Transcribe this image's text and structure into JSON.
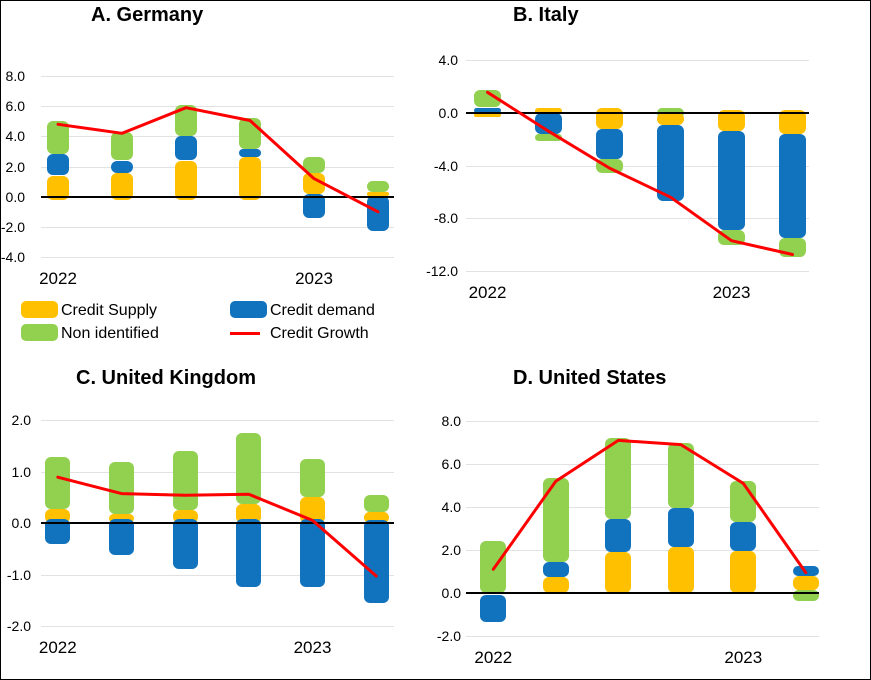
{
  "colors": {
    "supply": "#FFC000",
    "demand": "#1173BD",
    "non": "#92D050",
    "growth": "#FF0000",
    "gridline": "#E2E2E2",
    "zero_line": "#000000"
  },
  "legend": {
    "items": [
      {
        "key": "supply",
        "label": "Credit Supply"
      },
      {
        "key": "demand",
        "label": "Credit demand"
      },
      {
        "key": "non",
        "label": "Non identified"
      },
      {
        "key": "growth",
        "label": "Credit Growth"
      }
    ]
  },
  "chart_data": [
    {
      "id": "germany",
      "type": "bar",
      "title": "A. Germany",
      "ylim": [
        -4,
        8
      ],
      "grid": true,
      "yticks": [
        {
          "v": 8,
          "label": "8.0"
        },
        {
          "v": 6,
          "label": "6.0"
        },
        {
          "v": 4,
          "label": "4.0"
        },
        {
          "v": 2,
          "label": "2.0"
        },
        {
          "v": 0,
          "label": "0.0"
        },
        {
          "v": -2,
          "label": "-2.0"
        },
        {
          "v": -4,
          "label": "-4.0"
        }
      ],
      "x_labels": [
        {
          "bar_index": 0,
          "label": "2022"
        },
        {
          "bar_index": 4,
          "label": "2023"
        }
      ],
      "bars": [
        {
          "segments": [
            {
              "series": "supply",
              "from": -0.2,
              "to": 1.4
            },
            {
              "series": "demand",
              "from": 1.4,
              "to": 2.8
            },
            {
              "series": "non",
              "from": 2.8,
              "to": 5.0
            }
          ]
        },
        {
          "segments": [
            {
              "series": "supply",
              "from": -0.2,
              "to": 1.55
            },
            {
              "series": "demand",
              "from": 1.55,
              "to": 2.4
            },
            {
              "series": "non",
              "from": 2.4,
              "to": 4.3
            }
          ]
        },
        {
          "segments": [
            {
              "series": "supply",
              "from": -0.2,
              "to": 2.4
            },
            {
              "series": "demand",
              "from": 2.4,
              "to": 4.0
            },
            {
              "series": "non",
              "from": 4.0,
              "to": 6.1
            }
          ]
        },
        {
          "segments": [
            {
              "series": "supply",
              "from": -0.2,
              "to": 2.6
            },
            {
              "series": "demand",
              "from": 2.6,
              "to": 3.15
            },
            {
              "series": "non",
              "from": 3.15,
              "to": 5.2
            }
          ]
        },
        {
          "segments": [
            {
              "series": "demand",
              "from": -1.45,
              "to": 0.2
            },
            {
              "series": "supply",
              "from": 0.2,
              "to": 1.55
            },
            {
              "series": "non",
              "from": 1.55,
              "to": 2.6
            }
          ]
        },
        {
          "segments": [
            {
              "series": "demand",
              "from": -2.25,
              "to": 0.05
            },
            {
              "series": "supply",
              "from": 0.05,
              "to": 0.3
            },
            {
              "series": "non",
              "from": 0.3,
              "to": 1.05
            }
          ]
        }
      ],
      "credit_growth_line": [
        4.8,
        4.2,
        5.9,
        5.05,
        1.2,
        -1.0
      ]
    },
    {
      "id": "italy",
      "type": "bar",
      "title": "B. Italy",
      "ylim": [
        -12,
        4
      ],
      "grid": true,
      "yticks": [
        {
          "v": 4,
          "label": "4.0"
        },
        {
          "v": 0,
          "label": "0.0"
        },
        {
          "v": -4,
          "label": "-4.0"
        },
        {
          "v": -8,
          "label": "-8.0"
        },
        {
          "v": -12,
          "label": "-12.0"
        }
      ],
      "x_labels": [
        {
          "bar_index": 0,
          "label": "2022"
        },
        {
          "bar_index": 4,
          "label": "2023"
        }
      ],
      "bars": [
        {
          "segments": [
            {
              "series": "supply",
              "from": -0.3,
              "to": 0
            },
            {
              "series": "demand",
              "from": 0,
              "to": 0.4
            },
            {
              "series": "non",
              "from": 0.4,
              "to": 1.7
            }
          ]
        },
        {
          "segments": [
            {
              "series": "supply",
              "from": -0.1,
              "to": 0.4
            },
            {
              "series": "demand",
              "from": -1.6,
              "to": 0
            },
            {
              "series": "non",
              "from": -2.15,
              "to": -1.6
            }
          ]
        },
        {
          "segments": [
            {
              "series": "supply",
              "from": -1.25,
              "to": 0.33
            },
            {
              "series": "demand",
              "from": -3.5,
              "to": -1.25
            },
            {
              "series": "non",
              "from": -4.6,
              "to": -3.5
            }
          ]
        },
        {
          "segments": [
            {
              "series": "non",
              "from": -0.4,
              "to": 0.35
            },
            {
              "series": "supply",
              "from": -0.9,
              "to": 0
            },
            {
              "series": "demand",
              "from": -6.7,
              "to": -0.9
            }
          ]
        },
        {
          "segments": [
            {
              "series": "supply",
              "from": -1.4,
              "to": 0.2
            },
            {
              "series": "demand",
              "from": -8.9,
              "to": -1.4
            },
            {
              "series": "non",
              "from": -10.0,
              "to": -8.9
            }
          ]
        },
        {
          "segments": [
            {
              "series": "supply",
              "from": -1.6,
              "to": 0.25
            },
            {
              "series": "demand",
              "from": -9.5,
              "to": -1.6
            },
            {
              "series": "non",
              "from": -10.9,
              "to": -9.5
            }
          ]
        }
      ],
      "credit_growth_line": [
        1.55,
        -1.4,
        -4.2,
        -6.4,
        -9.7,
        -10.75
      ]
    },
    {
      "id": "united_kingdom",
      "type": "bar",
      "title": "C. United Kingdom",
      "ylim": [
        -2,
        2
      ],
      "grid": true,
      "yticks": [
        {
          "v": 2,
          "label": "2.0"
        },
        {
          "v": 1,
          "label": "1.0"
        },
        {
          "v": 0,
          "label": "0.0"
        },
        {
          "v": -1,
          "label": "-1.0"
        },
        {
          "v": -2,
          "label": "-2.0"
        }
      ],
      "x_labels": [
        {
          "bar_index": 0,
          "label": "2022"
        },
        {
          "bar_index": 4,
          "label": "2023"
        }
      ],
      "bars": [
        {
          "segments": [
            {
              "series": "supply",
              "from": 0,
              "to": 0.27
            },
            {
              "series": "non",
              "from": 0.27,
              "to": 1.28
            },
            {
              "series": "demand",
              "from": -0.4,
              "to": 0.07
            }
          ]
        },
        {
          "segments": [
            {
              "series": "supply",
              "from": 0,
              "to": 0.17
            },
            {
              "series": "non",
              "from": 0.17,
              "to": 1.18
            },
            {
              "series": "demand",
              "from": -0.62,
              "to": 0.07
            }
          ]
        },
        {
          "segments": [
            {
              "series": "supply",
              "from": 0,
              "to": 0.25
            },
            {
              "series": "non",
              "from": 0.25,
              "to": 1.4
            },
            {
              "series": "demand",
              "from": -0.9,
              "to": 0.07
            }
          ]
        },
        {
          "segments": [
            {
              "series": "supply",
              "from": 0,
              "to": 0.37
            },
            {
              "series": "non",
              "from": 0.37,
              "to": 1.75
            },
            {
              "series": "demand",
              "from": -1.25,
              "to": 0.07
            }
          ]
        },
        {
          "segments": [
            {
              "series": "supply",
              "from": 0,
              "to": 0.51
            },
            {
              "series": "non",
              "from": 0.51,
              "to": 1.24
            },
            {
              "series": "demand",
              "from": -1.24,
              "to": 0.07
            }
          ]
        },
        {
          "segments": [
            {
              "series": "supply",
              "from": 0,
              "to": 0.21
            },
            {
              "series": "non",
              "from": 0.21,
              "to": 0.54
            },
            {
              "series": "demand",
              "from": -1.55,
              "to": 0.06
            }
          ]
        }
      ],
      "credit_growth_line": [
        0.89,
        0.57,
        0.54,
        0.56,
        0.05,
        -1.03
      ]
    },
    {
      "id": "united_states",
      "type": "bar",
      "title": "D. United States",
      "ylim": [
        -2,
        8
      ],
      "grid": true,
      "yticks": [
        {
          "v": 8,
          "label": "8.0"
        },
        {
          "v": 6,
          "label": "6.0"
        },
        {
          "v": 4,
          "label": "4.0"
        },
        {
          "v": 2,
          "label": "2.0"
        },
        {
          "v": 0,
          "label": "0.0"
        },
        {
          "v": -2,
          "label": "-2.0"
        }
      ],
      "x_labels": [
        {
          "bar_index": 0,
          "label": "2022"
        },
        {
          "bar_index": 4,
          "label": "2023"
        }
      ],
      "bars": [
        {
          "segments": [
            {
              "series": "non",
              "from": 0,
              "to": 2.4
            },
            {
              "series": "demand",
              "from": -1.35,
              "to": -0.1
            }
          ]
        },
        {
          "segments": [
            {
              "series": "supply",
              "from": 0,
              "to": 0.75
            },
            {
              "series": "demand",
              "from": 0.75,
              "to": 1.45
            },
            {
              "series": "non",
              "from": 1.45,
              "to": 5.35
            }
          ]
        },
        {
          "segments": [
            {
              "series": "supply",
              "from": 0,
              "to": 1.9
            },
            {
              "series": "demand",
              "from": 1.9,
              "to": 3.45
            },
            {
              "series": "non",
              "from": 3.45,
              "to": 7.2
            }
          ]
        },
        {
          "segments": [
            {
              "series": "supply",
              "from": 0,
              "to": 2.15
            },
            {
              "series": "demand",
              "from": 2.15,
              "to": 3.95
            },
            {
              "series": "non",
              "from": 3.95,
              "to": 7.0
            }
          ]
        },
        {
          "segments": [
            {
              "series": "supply",
              "from": 0,
              "to": 1.95
            },
            {
              "series": "demand",
              "from": 1.95,
              "to": 3.3
            },
            {
              "series": "non",
              "from": 3.3,
              "to": 5.2
            }
          ]
        },
        {
          "segments": [
            {
              "series": "non",
              "from": -0.35,
              "to": 0.15
            },
            {
              "series": "supply",
              "from": 0.15,
              "to": 0.78
            },
            {
              "series": "demand",
              "from": 0.78,
              "to": 1.26
            }
          ]
        }
      ],
      "credit_growth_line": [
        1.1,
        5.2,
        7.1,
        6.9,
        5.1,
        0.95
      ]
    }
  ]
}
